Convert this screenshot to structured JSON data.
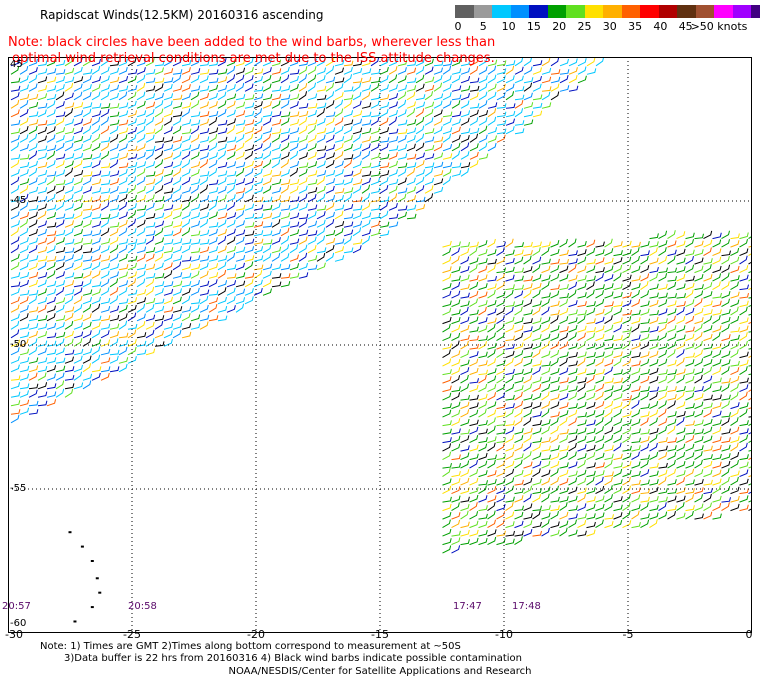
{
  "title": "Rapidscat Winds(12.5KM) 20160316 ascending",
  "note_lines": [
    "Note: black circles have been added to the wind barbs, wherever less than",
    "optimal wind retrieval conditions are met due to the ISS attitude changes."
  ],
  "colorbar": {
    "colors": [
      "#606060",
      "#9a9a9a",
      "#00c8ff",
      "#0090ff",
      "#0010c0",
      "#00a000",
      "#60e020",
      "#ffe000",
      "#ffb000",
      "#ff6000",
      "#ff0000",
      "#b00000",
      "#603010",
      "#a05030",
      "#ff00ff",
      "#a000ff",
      "#400080"
    ],
    "labels": [
      "0",
      "5",
      "10",
      "15",
      "20",
      "25",
      "30",
      "35",
      "40",
      "45",
      ">50 knots"
    ]
  },
  "map": {
    "lat_labels": [
      "45",
      "-45",
      "-50",
      "-55",
      "-60"
    ],
    "lon_labels": [
      "-30",
      "-25",
      "-20",
      "-15",
      "-10",
      "-5",
      "0"
    ],
    "lon_range": [
      -30,
      0
    ],
    "lat_range": [
      -60,
      -40
    ],
    "time_labels": [
      "20:57",
      "20:58",
      "17:47",
      "17:48"
    ],
    "swaths": [
      {
        "name": "western-swath",
        "polygon_lonlat": [
          [
            -30,
            -40.2
          ],
          [
            -5.9,
            -40.2
          ],
          [
            -14.7,
            -46.2
          ],
          [
            -30,
            -52.9
          ]
        ],
        "palette": [
          "#00c8ff",
          "#0090ff",
          "#0010c0",
          "#00a000",
          "#60e020",
          "#ffe000",
          "#ffb000",
          "#ff6000",
          "#000000"
        ]
      },
      {
        "name": "eastern-swath",
        "polygon_lonlat": [
          [
            -12.6,
            -46.5
          ],
          [
            0,
            -46.2
          ],
          [
            0,
            -55.9
          ],
          [
            -12.6,
            -57.3
          ]
        ],
        "palette": [
          "#00a000",
          "#60e020",
          "#ffe000",
          "#ffb000",
          "#ff6000",
          "#0010c0",
          "#000000"
        ]
      }
    ],
    "track_points_lonlat": [
      [
        -27.5,
        -56.5
      ],
      [
        -27.0,
        -57.0
      ],
      [
        -26.6,
        -57.5
      ],
      [
        -26.4,
        -58.1
      ],
      [
        -26.3,
        -58.6
      ],
      [
        -26.6,
        -59.1
      ],
      [
        -27.3,
        -59.6
      ]
    ]
  },
  "footnotes": [
    "Note: 1) Times are GMT 2)Times along bottom correspond to measurement at ~50S",
    "3)Data buffer is 22 hrs from 20160316 4) Black wind barbs indicate possible contamination"
  ],
  "credit": "NOAA/NESDIS/Center for Satellite Applications and Research"
}
